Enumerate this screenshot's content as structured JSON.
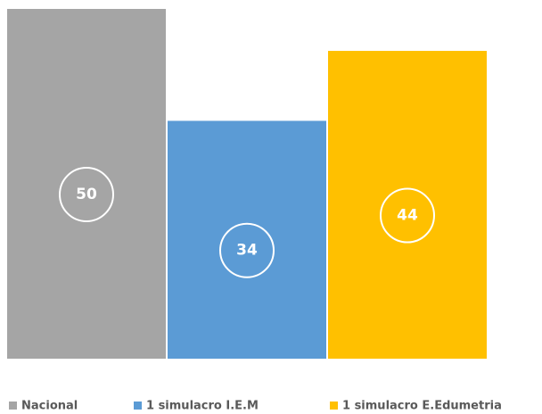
{
  "chart_data": {
    "type": "bar",
    "series": [
      {
        "name": "Nacional",
        "color": "#a5a5a5",
        "values": [
          50
        ]
      },
      {
        "name": "1 simulacro I.E.M",
        "color": "#5b9bd5",
        "values": [
          34
        ]
      },
      {
        "name": "1 simulacro E.Edumetria",
        "color": "#ffc000",
        "values": [
          44
        ]
      }
    ],
    "legend": "bottom"
  }
}
